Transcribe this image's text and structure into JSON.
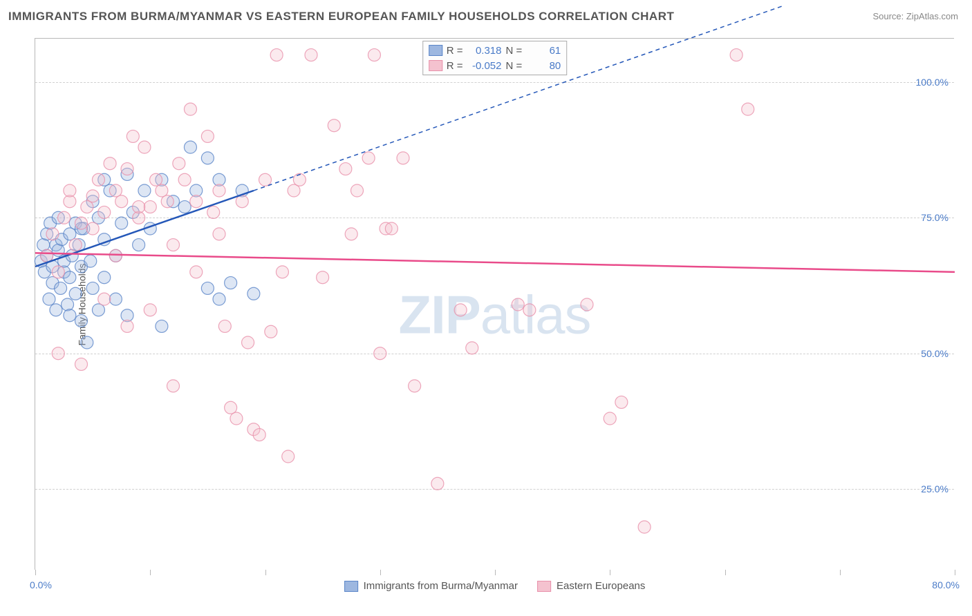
{
  "title": "IMMIGRANTS FROM BURMA/MYANMAR VS EASTERN EUROPEAN FAMILY HOUSEHOLDS CORRELATION CHART",
  "source": "Source: ZipAtlas.com",
  "ylabel": "Family Households",
  "watermark_bold": "ZIP",
  "watermark_rest": "atlas",
  "chart": {
    "type": "scatter",
    "xlim": [
      0,
      80
    ],
    "ylim": [
      10,
      108
    ],
    "xtick_positions": [
      0,
      10,
      20,
      30,
      40,
      50,
      60,
      70,
      80
    ],
    "xtick_labels": {
      "min": "0.0%",
      "max": "80.0%"
    },
    "ytick_positions": [
      25,
      50,
      75,
      100
    ],
    "ytick_labels": [
      "25.0%",
      "50.0%",
      "75.0%",
      "100.0%"
    ],
    "grid_color": "#d0d0d0",
    "background_color": "#ffffff",
    "axis_color": "#b8b8b8",
    "tick_label_color": "#4a7bc8",
    "marker_radius": 9,
    "marker_opacity": 0.35,
    "series": [
      {
        "key": "burma",
        "label": "Immigrants from Burma/Myanmar",
        "color_fill": "#9db7e0",
        "color_stroke": "#5a85c8",
        "R": "0.318",
        "N": "61",
        "trend": {
          "x1": 0,
          "y1": 66,
          "x2": 19,
          "y2": 80,
          "dash_x1": 19,
          "dash_y1": 80,
          "dash_x2": 65,
          "dash_y2": 114,
          "stroke": "#2457b8",
          "width": 2.5
        },
        "points": [
          [
            0.5,
            67
          ],
          [
            0.7,
            70
          ],
          [
            0.8,
            65
          ],
          [
            1,
            68
          ],
          [
            1,
            72
          ],
          [
            1.2,
            60
          ],
          [
            1.3,
            74
          ],
          [
            1.5,
            66
          ],
          [
            1.5,
            63
          ],
          [
            1.8,
            70
          ],
          [
            1.8,
            58
          ],
          [
            2,
            69
          ],
          [
            2,
            75
          ],
          [
            2.2,
            62
          ],
          [
            2.3,
            71
          ],
          [
            2.5,
            65
          ],
          [
            2.5,
            67
          ],
          [
            2.8,
            59
          ],
          [
            3,
            72
          ],
          [
            3,
            64
          ],
          [
            3.2,
            68
          ],
          [
            3.5,
            74
          ],
          [
            3.5,
            61
          ],
          [
            3.8,
            70
          ],
          [
            4,
            66
          ],
          [
            4,
            56
          ],
          [
            4.2,
            73
          ],
          [
            4.5,
            52
          ],
          [
            4.8,
            67
          ],
          [
            5,
            78
          ],
          [
            5,
            62
          ],
          [
            5.5,
            75
          ],
          [
            5.5,
            58
          ],
          [
            6,
            71
          ],
          [
            6,
            64
          ],
          [
            6.5,
            80
          ],
          [
            7,
            68
          ],
          [
            7,
            60
          ],
          [
            7.5,
            74
          ],
          [
            8,
            83
          ],
          [
            8,
            57
          ],
          [
            8.5,
            76
          ],
          [
            9,
            70
          ],
          [
            9.5,
            80
          ],
          [
            10,
            73
          ],
          [
            11,
            82
          ],
          [
            11,
            55
          ],
          [
            12,
            78
          ],
          [
            13,
            77
          ],
          [
            13.5,
            88
          ],
          [
            14,
            80
          ],
          [
            15,
            86
          ],
          [
            15,
            62
          ],
          [
            16,
            82
          ],
          [
            16,
            60
          ],
          [
            17,
            63
          ],
          [
            18,
            80
          ],
          [
            19,
            61
          ],
          [
            4,
            73
          ],
          [
            6,
            82
          ],
          [
            3,
            57
          ]
        ]
      },
      {
        "key": "eeuro",
        "label": "Eastern Europeans",
        "color_fill": "#f4c2cf",
        "color_stroke": "#e890aa",
        "R": "-0.052",
        "N": "80",
        "trend": {
          "x1": 0,
          "y1": 68.5,
          "x2": 80,
          "y2": 65,
          "stroke": "#e94b8a",
          "width": 2.5
        },
        "points": [
          [
            1,
            68
          ],
          [
            1.5,
            72
          ],
          [
            2,
            65
          ],
          [
            2.5,
            75
          ],
          [
            3,
            78
          ],
          [
            3.5,
            70
          ],
          [
            4,
            74
          ],
          [
            4.5,
            77
          ],
          [
            5,
            79
          ],
          [
            5.5,
            82
          ],
          [
            6,
            76
          ],
          [
            6.5,
            85
          ],
          [
            7,
            80
          ],
          [
            7.5,
            78
          ],
          [
            8,
            84
          ],
          [
            8.5,
            90
          ],
          [
            9,
            75
          ],
          [
            9.5,
            88
          ],
          [
            10,
            77
          ],
          [
            10.5,
            82
          ],
          [
            11,
            80
          ],
          [
            11.5,
            78
          ],
          [
            12,
            44
          ],
          [
            12.5,
            85
          ],
          [
            13,
            82
          ],
          [
            13.5,
            95
          ],
          [
            14,
            78
          ],
          [
            15,
            90
          ],
          [
            15.5,
            76
          ],
          [
            16,
            80
          ],
          [
            16.5,
            55
          ],
          [
            17,
            40
          ],
          [
            17.5,
            38
          ],
          [
            18,
            78
          ],
          [
            18.5,
            52
          ],
          [
            19,
            36
          ],
          [
            19.5,
            35
          ],
          [
            20,
            82
          ],
          [
            20.5,
            54
          ],
          [
            21,
            105
          ],
          [
            21.5,
            65
          ],
          [
            22,
            31
          ],
          [
            22.5,
            80
          ],
          [
            23,
            82
          ],
          [
            24,
            105
          ],
          [
            25,
            64
          ],
          [
            26,
            92
          ],
          [
            27,
            84
          ],
          [
            27.5,
            72
          ],
          [
            28,
            80
          ],
          [
            29,
            86
          ],
          [
            29.5,
            105
          ],
          [
            30,
            50
          ],
          [
            30.5,
            73
          ],
          [
            31,
            73
          ],
          [
            32,
            86
          ],
          [
            33,
            44
          ],
          [
            35,
            26
          ],
          [
            37,
            58
          ],
          [
            38,
            51
          ],
          [
            42,
            59
          ],
          [
            43,
            58
          ],
          [
            48,
            59
          ],
          [
            50,
            38
          ],
          [
            51,
            41
          ],
          [
            53,
            18
          ],
          [
            61,
            105
          ],
          [
            62,
            95
          ],
          [
            2,
            50
          ],
          [
            4,
            48
          ],
          [
            6,
            60
          ],
          [
            8,
            55
          ],
          [
            10,
            58
          ],
          [
            12,
            70
          ],
          [
            14,
            65
          ],
          [
            16,
            72
          ],
          [
            3,
            80
          ],
          [
            5,
            73
          ],
          [
            7,
            68
          ],
          [
            9,
            77
          ]
        ]
      }
    ]
  },
  "legend": {
    "series1_label": "Immigrants from Burma/Myanmar",
    "series2_label": "Eastern Europeans"
  },
  "stats": {
    "r_label": "R =",
    "n_label": "N ="
  }
}
